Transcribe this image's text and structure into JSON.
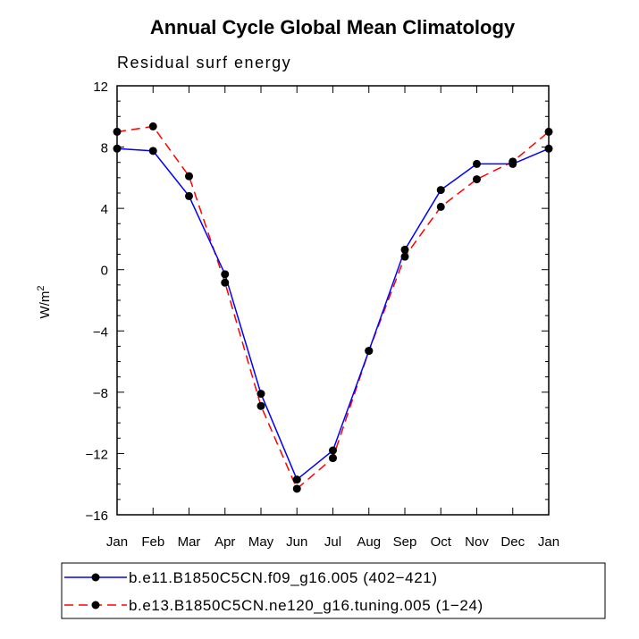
{
  "chart_data": {
    "type": "line",
    "title": "Annual Cycle Global Mean Climatology",
    "subtitle": "Residual surf energy",
    "xlabel": "",
    "ylabel": "W/m",
    "ylabel_superscript": "2",
    "categories": [
      "Jan",
      "Feb",
      "Mar",
      "Apr",
      "May",
      "Jun",
      "Jul",
      "Aug",
      "Sep",
      "Oct",
      "Nov",
      "Dec",
      "Jan"
    ],
    "ylim": [
      -16,
      12
    ],
    "yticks": [
      12,
      8,
      4,
      0,
      -4,
      -8,
      -12,
      -16
    ],
    "ytick_labels": [
      "12",
      "8",
      "4",
      "0",
      "−4",
      "−8",
      "−12",
      "−16"
    ],
    "grid": false,
    "legend_position": "bottom",
    "series": [
      {
        "name": "b.e11.B1850C5CN.f09_g16.005 (402−421)",
        "color": "#0000ff",
        "line_style": "solid",
        "marker": "filled-circle",
        "values": [
          7.9,
          7.75,
          4.8,
          -0.3,
          -8.1,
          -13.7,
          -11.8,
          -5.3,
          1.3,
          5.2,
          6.9,
          6.9,
          7.9
        ]
      },
      {
        "name": "b.e13.B1850C5CN.ne120_g16.tuning.005 (1−24)",
        "color": "#ff0000",
        "line_style": "dashed",
        "marker": "filled-circle",
        "values": [
          9.0,
          9.35,
          6.1,
          -0.85,
          -8.9,
          -14.3,
          -12.3,
          -5.3,
          0.85,
          4.1,
          5.9,
          7.05,
          9.0
        ]
      }
    ]
  }
}
